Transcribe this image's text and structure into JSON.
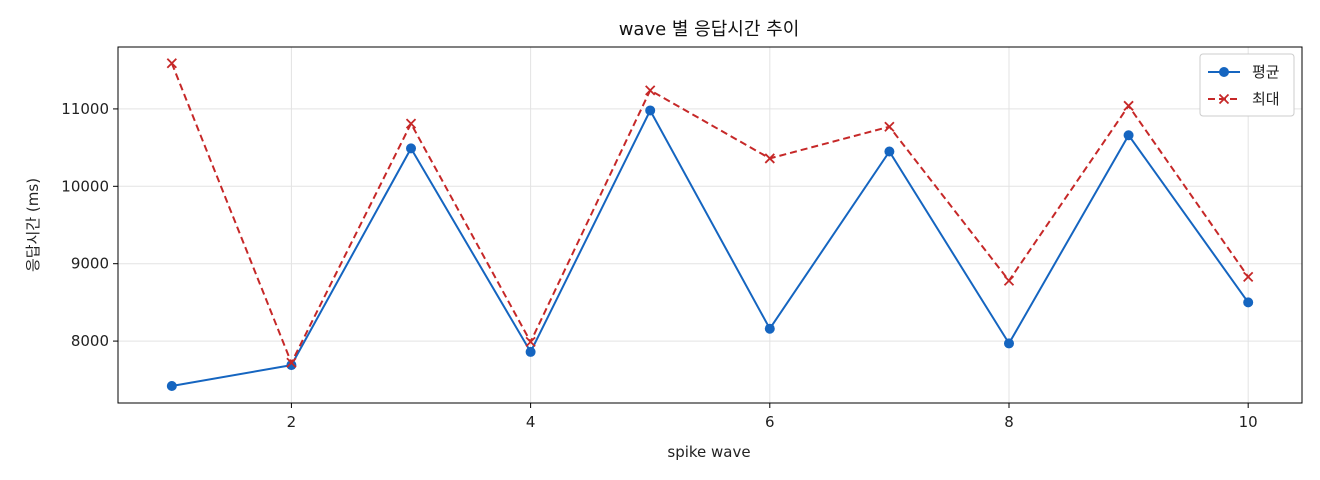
{
  "chart_data": {
    "type": "line",
    "title": "wave 별 응답시간 추이",
    "xlabel": "spike wave",
    "ylabel": "응답시간 (ms)",
    "x": [
      1,
      2,
      3,
      4,
      5,
      6,
      7,
      8,
      9,
      10
    ],
    "xlim": [
      0.55,
      10.45
    ],
    "ylim": [
      7200,
      11800
    ],
    "xticks": [
      2,
      4,
      6,
      8,
      10
    ],
    "yticks": [
      8000,
      9000,
      10000,
      11000
    ],
    "grid": true,
    "legend": "top-right",
    "series": [
      {
        "name": "평균",
        "color": "#1565c0",
        "marker": "circle",
        "linestyle": "solid",
        "values": [
          7420,
          7690,
          10490,
          7860,
          10980,
          8160,
          10450,
          7970,
          10660,
          8500
        ]
      },
      {
        "name": "최대",
        "color": "#c62828",
        "marker": "x",
        "linestyle": "dashed",
        "values": [
          11590,
          7720,
          10810,
          7990,
          11240,
          10360,
          10770,
          8780,
          11040,
          8830
        ]
      }
    ]
  }
}
